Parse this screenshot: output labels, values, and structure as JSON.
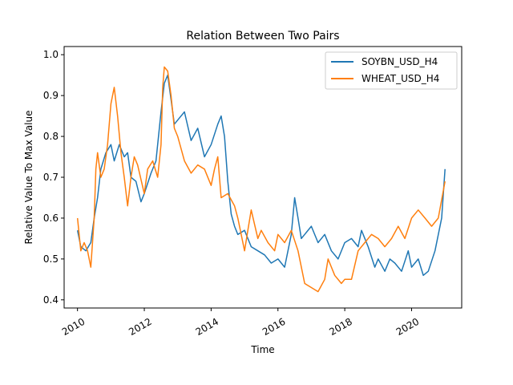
{
  "chart_data": {
    "type": "line",
    "title": "Relation Between Two Pairs",
    "xlabel": "Time",
    "ylabel": "Relative Value To Max Value",
    "xlim": [
      2009.6,
      2021.5
    ],
    "ylim": [
      0.38,
      1.02
    ],
    "x_ticks": [
      2010,
      2012,
      2014,
      2016,
      2018,
      2020
    ],
    "x_tick_labels": [
      "2010",
      "2012",
      "2014",
      "2016",
      "2018",
      "2020"
    ],
    "y_ticks": [
      0.4,
      0.5,
      0.6,
      0.7,
      0.8,
      0.9,
      1.0
    ],
    "y_tick_labels": [
      "0.4",
      "0.5",
      "0.6",
      "0.7",
      "0.8",
      "0.9",
      "1.0"
    ],
    "legend_position": "top-right",
    "series": [
      {
        "name": "SOYBN_USD_H4",
        "color": "#1f77b4",
        "x": [
          2010.0,
          2010.1,
          2010.25,
          2010.4,
          2010.5,
          2010.6,
          2010.7,
          2010.85,
          2011.0,
          2011.1,
          2011.25,
          2011.4,
          2011.5,
          2011.6,
          2011.75,
          2011.9,
          2012.0,
          2012.2,
          2012.35,
          2012.5,
          2012.6,
          2012.7,
          2012.8,
          2012.9,
          2013.0,
          2013.2,
          2013.4,
          2013.6,
          2013.8,
          2014.0,
          2014.2,
          2014.3,
          2014.4,
          2014.5,
          2014.6,
          2014.7,
          2014.8,
          2015.0,
          2015.2,
          2015.4,
          2015.6,
          2015.8,
          2016.0,
          2016.2,
          2016.4,
          2016.5,
          2016.6,
          2016.7,
          2016.8,
          2017.0,
          2017.2,
          2017.4,
          2017.6,
          2017.8,
          2018.0,
          2018.2,
          2018.4,
          2018.5,
          2018.7,
          2018.9,
          2019.0,
          2019.2,
          2019.35,
          2019.5,
          2019.7,
          2019.9,
          2020.0,
          2020.2,
          2020.35,
          2020.5,
          2020.7,
          2020.9,
          2021.0
        ],
        "y": [
          0.57,
          0.53,
          0.52,
          0.54,
          0.6,
          0.65,
          0.72,
          0.76,
          0.78,
          0.74,
          0.78,
          0.75,
          0.76,
          0.7,
          0.69,
          0.64,
          0.66,
          0.71,
          0.74,
          0.86,
          0.93,
          0.95,
          0.89,
          0.83,
          0.84,
          0.86,
          0.79,
          0.82,
          0.75,
          0.78,
          0.83,
          0.85,
          0.8,
          0.69,
          0.61,
          0.58,
          0.56,
          0.57,
          0.53,
          0.52,
          0.51,
          0.49,
          0.5,
          0.48,
          0.56,
          0.65,
          0.6,
          0.55,
          0.56,
          0.58,
          0.54,
          0.56,
          0.52,
          0.5,
          0.54,
          0.55,
          0.53,
          0.57,
          0.53,
          0.48,
          0.5,
          0.47,
          0.5,
          0.49,
          0.47,
          0.52,
          0.48,
          0.5,
          0.46,
          0.47,
          0.52,
          0.6,
          0.72
        ]
      },
      {
        "name": "WHEAT_USD_H4",
        "color": "#ff7f0e",
        "x": [
          2010.0,
          2010.1,
          2010.2,
          2010.3,
          2010.4,
          2010.5,
          2010.55,
          2010.6,
          2010.7,
          2010.8,
          2010.9,
          2011.0,
          2011.1,
          2011.2,
          2011.3,
          2011.4,
          2011.5,
          2011.6,
          2011.7,
          2011.8,
          2012.0,
          2012.1,
          2012.25,
          2012.4,
          2012.5,
          2012.55,
          2012.6,
          2012.7,
          2012.8,
          2012.9,
          2013.0,
          2013.2,
          2013.4,
          2013.6,
          2013.8,
          2014.0,
          2014.1,
          2014.2,
          2014.3,
          2014.5,
          2014.7,
          2014.8,
          2015.0,
          2015.1,
          2015.2,
          2015.4,
          2015.5,
          2015.7,
          2015.9,
          2016.0,
          2016.2,
          2016.4,
          2016.6,
          2016.8,
          2017.0,
          2017.2,
          2017.4,
          2017.5,
          2017.7,
          2017.9,
          2018.0,
          2018.2,
          2018.4,
          2018.6,
          2018.8,
          2019.0,
          2019.2,
          2019.4,
          2019.6,
          2019.8,
          2020.0,
          2020.2,
          2020.4,
          2020.6,
          2020.8,
          2021.0
        ],
        "y": [
          0.6,
          0.52,
          0.54,
          0.52,
          0.48,
          0.6,
          0.72,
          0.76,
          0.7,
          0.72,
          0.78,
          0.88,
          0.92,
          0.85,
          0.76,
          0.7,
          0.63,
          0.7,
          0.75,
          0.73,
          0.66,
          0.72,
          0.74,
          0.7,
          0.78,
          0.92,
          0.97,
          0.96,
          0.9,
          0.82,
          0.8,
          0.74,
          0.71,
          0.73,
          0.72,
          0.68,
          0.72,
          0.75,
          0.65,
          0.66,
          0.63,
          0.6,
          0.52,
          0.57,
          0.62,
          0.55,
          0.57,
          0.54,
          0.52,
          0.56,
          0.54,
          0.57,
          0.52,
          0.44,
          0.43,
          0.42,
          0.45,
          0.5,
          0.46,
          0.44,
          0.45,
          0.45,
          0.52,
          0.54,
          0.56,
          0.55,
          0.53,
          0.55,
          0.58,
          0.55,
          0.6,
          0.62,
          0.6,
          0.58,
          0.6,
          0.69
        ]
      }
    ]
  }
}
